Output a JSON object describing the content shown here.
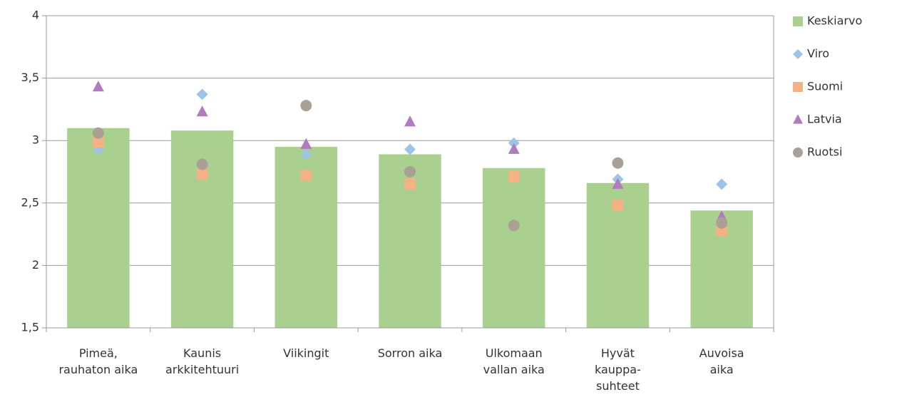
{
  "chart_data": {
    "type": "bar",
    "categories": [
      "Pimeä,\nrauhaton aika",
      "Kaunis\narkkitehtuuri",
      "Viikingit",
      "Sorron aika",
      "Ulkomaan\nvallan aika",
      "Hyvät\nkauppa-\nsuhteet",
      "Auvoisa\naika"
    ],
    "series": [
      {
        "name": "Keskiarvo",
        "type": "bar",
        "color": "#a9d08e",
        "values": [
          3.1,
          3.08,
          2.95,
          2.89,
          2.78,
          2.66,
          2.44
        ]
      },
      {
        "name": "Viro",
        "type": "scatter",
        "marker": "diamond",
        "color": "#9dc3e6",
        "values": [
          2.93,
          3.37,
          2.89,
          2.93,
          2.98,
          2.69,
          2.65
        ]
      },
      {
        "name": "Suomi",
        "type": "scatter",
        "marker": "square",
        "color": "#f4b183",
        "values": [
          2.99,
          2.73,
          2.72,
          2.65,
          2.71,
          2.48,
          2.28
        ]
      },
      {
        "name": "Latvia",
        "type": "scatter",
        "marker": "triangle",
        "color": "#b07cbf",
        "values": [
          3.43,
          3.23,
          2.97,
          3.15,
          2.93,
          2.65,
          2.39
        ]
      },
      {
        "name": "Ruotsi",
        "type": "scatter",
        "marker": "circle",
        "color": "#aaa194",
        "values": [
          3.06,
          2.81,
          3.28,
          2.75,
          2.32,
          2.82,
          2.34
        ]
      }
    ],
    "ylim": [
      1.5,
      4
    ],
    "yticks": [
      {
        "value": 1.5,
        "label": "1,5"
      },
      2,
      {
        "value": 2.5,
        "label": "2,5"
      },
      3,
      {
        "value": 3.5,
        "label": "3,5"
      },
      4
    ],
    "grid": true,
    "legend": "right"
  }
}
